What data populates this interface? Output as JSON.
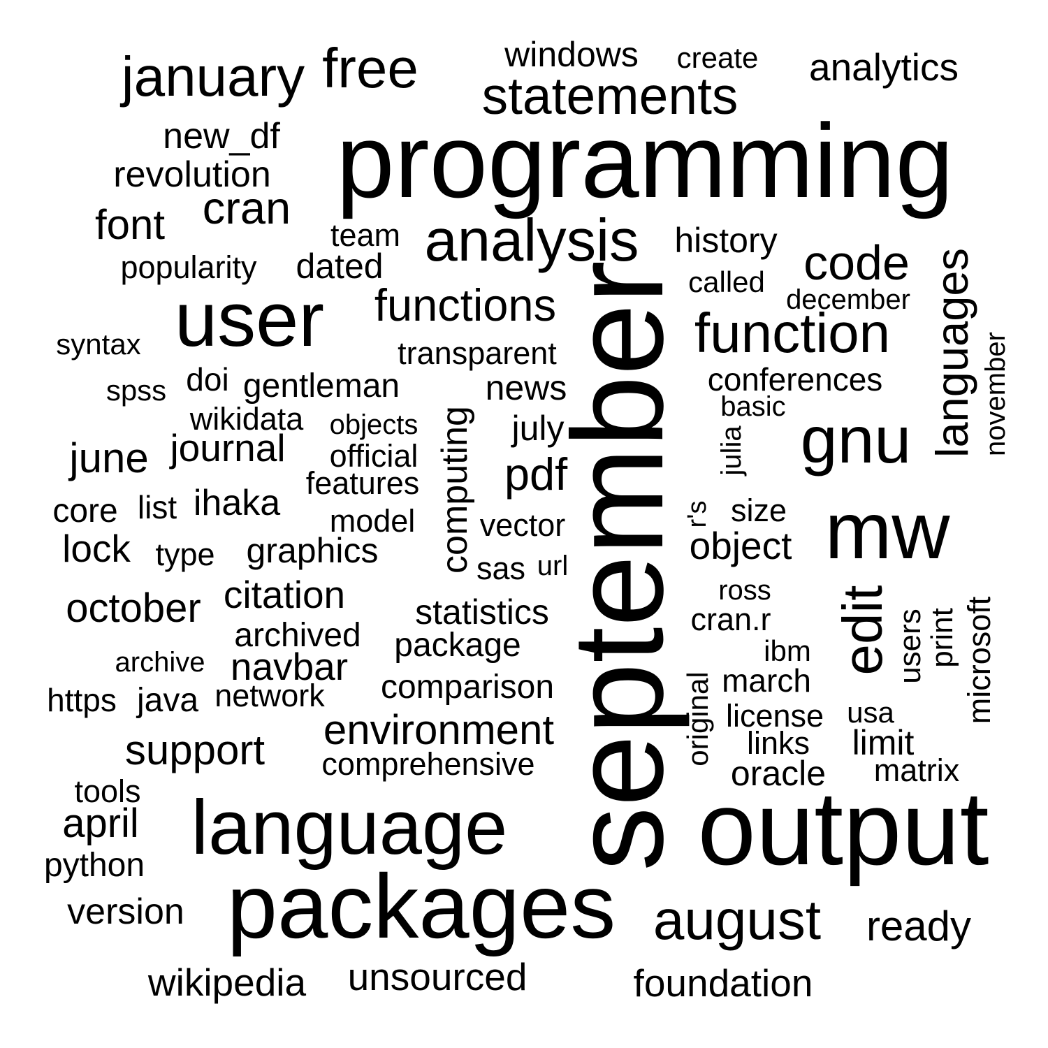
{
  "text_color": "#000000",
  "background_color": "#ffffff",
  "words": [
    {
      "id": "programming",
      "text": "programming"
    },
    {
      "id": "september",
      "text": "september"
    },
    {
      "id": "output",
      "text": "output"
    },
    {
      "id": "packages",
      "text": "packages"
    },
    {
      "id": "language",
      "text": "language"
    },
    {
      "id": "user",
      "text": "user"
    },
    {
      "id": "mw",
      "text": "mw"
    },
    {
      "id": "analysis",
      "text": "analysis"
    },
    {
      "id": "january",
      "text": "january"
    },
    {
      "id": "free",
      "text": "free"
    },
    {
      "id": "statements",
      "text": "statements"
    },
    {
      "id": "function",
      "text": "function"
    },
    {
      "id": "gnu",
      "text": "gnu"
    },
    {
      "id": "august",
      "text": "august"
    },
    {
      "id": "edit",
      "text": "edit"
    },
    {
      "id": "languages",
      "text": "languages"
    },
    {
      "id": "code",
      "text": "code"
    },
    {
      "id": "functions",
      "text": "functions"
    },
    {
      "id": "windows",
      "text": "windows"
    },
    {
      "id": "create",
      "text": "create"
    },
    {
      "id": "analytics",
      "text": "analytics"
    },
    {
      "id": "new_df",
      "text": "new_df"
    },
    {
      "id": "revolution",
      "text": "revolution"
    },
    {
      "id": "cran",
      "text": "cran"
    },
    {
      "id": "font",
      "text": "font"
    },
    {
      "id": "team",
      "text": "team"
    },
    {
      "id": "history",
      "text": "history"
    },
    {
      "id": "popularity",
      "text": "popularity"
    },
    {
      "id": "dated",
      "text": "dated"
    },
    {
      "id": "called",
      "text": "called"
    },
    {
      "id": "december",
      "text": "december"
    },
    {
      "id": "syntax",
      "text": "syntax"
    },
    {
      "id": "transparent",
      "text": "transparent"
    },
    {
      "id": "november",
      "text": "november"
    },
    {
      "id": "spss",
      "text": "spss"
    },
    {
      "id": "doi",
      "text": "doi"
    },
    {
      "id": "gentleman",
      "text": "gentleman"
    },
    {
      "id": "computing",
      "text": "computing"
    },
    {
      "id": "news",
      "text": "news"
    },
    {
      "id": "conferences",
      "text": "conferences"
    },
    {
      "id": "basic",
      "text": "basic"
    },
    {
      "id": "wikidata",
      "text": "wikidata"
    },
    {
      "id": "objects",
      "text": "objects"
    },
    {
      "id": "july",
      "text": "july"
    },
    {
      "id": "julia",
      "text": "julia"
    },
    {
      "id": "june",
      "text": "june"
    },
    {
      "id": "journal",
      "text": "journal"
    },
    {
      "id": "official",
      "text": "official"
    },
    {
      "id": "pdf",
      "text": "pdf"
    },
    {
      "id": "features",
      "text": "features"
    },
    {
      "id": "core",
      "text": "core"
    },
    {
      "id": "list",
      "text": "list"
    },
    {
      "id": "ihaka",
      "text": "ihaka"
    },
    {
      "id": "model",
      "text": "model"
    },
    {
      "id": "r_s",
      "text": "r's"
    },
    {
      "id": "size",
      "text": "size"
    },
    {
      "id": "vector",
      "text": "vector"
    },
    {
      "id": "lock",
      "text": "lock"
    },
    {
      "id": "type",
      "text": "type"
    },
    {
      "id": "graphics",
      "text": "graphics"
    },
    {
      "id": "object",
      "text": "object"
    },
    {
      "id": "sas",
      "text": "sas"
    },
    {
      "id": "url",
      "text": "url"
    },
    {
      "id": "ross",
      "text": "ross"
    },
    {
      "id": "microsoft",
      "text": "microsoft"
    },
    {
      "id": "october",
      "text": "october"
    },
    {
      "id": "citation",
      "text": "citation"
    },
    {
      "id": "statistics",
      "text": "statistics"
    },
    {
      "id": "cran_r",
      "text": "cran.r"
    },
    {
      "id": "users",
      "text": "users"
    },
    {
      "id": "print",
      "text": "print"
    },
    {
      "id": "archived",
      "text": "archived"
    },
    {
      "id": "package",
      "text": "package"
    },
    {
      "id": "ibm",
      "text": "ibm"
    },
    {
      "id": "archive",
      "text": "archive"
    },
    {
      "id": "navbar",
      "text": "navbar"
    },
    {
      "id": "march",
      "text": "march"
    },
    {
      "id": "original",
      "text": "original"
    },
    {
      "id": "comparison",
      "text": "comparison"
    },
    {
      "id": "https",
      "text": "https"
    },
    {
      "id": "java",
      "text": "java"
    },
    {
      "id": "network",
      "text": "network"
    },
    {
      "id": "license",
      "text": "license"
    },
    {
      "id": "usa",
      "text": "usa"
    },
    {
      "id": "environment",
      "text": "environment"
    },
    {
      "id": "support",
      "text": "support"
    },
    {
      "id": "links",
      "text": "links"
    },
    {
      "id": "limit",
      "text": "limit"
    },
    {
      "id": "comprehensive",
      "text": "comprehensive"
    },
    {
      "id": "matrix",
      "text": "matrix"
    },
    {
      "id": "oracle",
      "text": "oracle"
    },
    {
      "id": "tools",
      "text": "tools"
    },
    {
      "id": "april",
      "text": "april"
    },
    {
      "id": "python",
      "text": "python"
    },
    {
      "id": "version",
      "text": "version"
    },
    {
      "id": "ready",
      "text": "ready"
    },
    {
      "id": "wikipedia",
      "text": "wikipedia"
    },
    {
      "id": "unsourced",
      "text": "unsourced"
    },
    {
      "id": "foundation",
      "text": "foundation"
    }
  ]
}
